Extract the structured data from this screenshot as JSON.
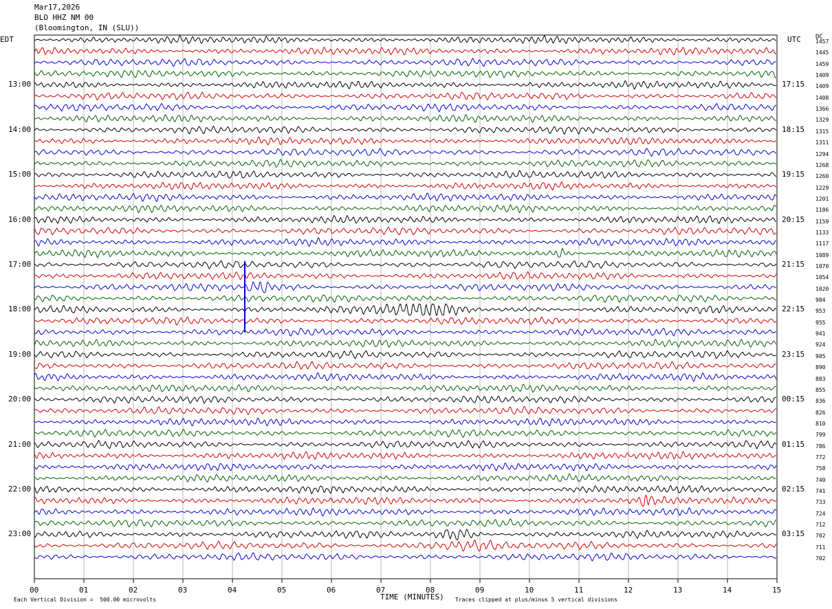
{
  "header": {
    "date": "Mar17,2026",
    "station": "BLO HHZ NM 00",
    "location": "(Bloomington, IN (SLU))"
  },
  "left_tz": "EDT",
  "right_tz": "UTC",
  "dc_header": "DC",
  "footer": {
    "xlabel": "TIME (MINUTES)",
    "scale_note": "Each Vertical Division =  500.00 microvolts",
    "clip_note": "Traces clipped at plus/minus 5 vertical divisions"
  },
  "chart_data": {
    "type": "helicorder",
    "xlabel": "TIME (MINUTES)",
    "xlim": [
      0,
      15
    ],
    "x_ticks": [
      "00",
      "01",
      "02",
      "03",
      "04",
      "05",
      "06",
      "07",
      "08",
      "09",
      "10",
      "11",
      "12",
      "13",
      "14",
      "15"
    ],
    "trace_colors": [
      "#000000",
      "#d00000",
      "#0000d0",
      "#006000"
    ],
    "left_hour_labels": [
      "13:00",
      "14:00",
      "15:00",
      "16:00",
      "17:00",
      "18:00",
      "19:00",
      "20:00",
      "21:00",
      "22:00",
      "23:00"
    ],
    "right_hour_labels": [
      "17:15",
      "18:15",
      "19:15",
      "20:15",
      "21:15",
      "22:15",
      "23:15",
      "00:15",
      "01:15",
      "02:15",
      "03:15"
    ],
    "dc_offsets": [
      1457,
      1445,
      1459,
      1409,
      1409,
      1408,
      1366,
      1329,
      1315,
      1311,
      1294,
      1268,
      1260,
      1229,
      1201,
      1186,
      1159,
      1133,
      1117,
      1089,
      1070,
      1054,
      1020,
      984,
      953,
      955,
      941,
      924,
      905,
      890,
      883,
      855,
      836,
      826,
      810,
      799,
      786,
      772,
      758,
      740,
      741,
      733,
      724,
      712,
      702,
      711,
      702
    ],
    "events": [
      {
        "line": 22,
        "start_min": 4.2,
        "end_min": 4.9,
        "note": "large blue spike"
      },
      {
        "line": 24,
        "start_min": 6.5,
        "end_min": 9.2,
        "note": "surface waves"
      },
      {
        "line": 44,
        "start_min": 8.0,
        "end_min": 9.2
      },
      {
        "line": 45,
        "start_min": 7.5,
        "end_min": 9.5,
        "note": "red burst"
      },
      {
        "line": 19,
        "start_min": 10.4,
        "end_min": 10.9
      },
      {
        "line": 41,
        "start_min": 12.2,
        "end_min": 12.5
      }
    ]
  }
}
